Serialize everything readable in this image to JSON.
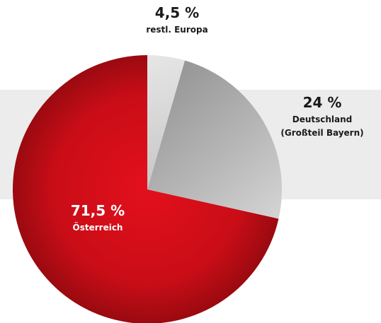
{
  "chart_data": {
    "type": "pie",
    "slices": [
      {
        "pct_label": "71,5 %",
        "label_lines": [
          "Österreich"
        ],
        "value": 71.5,
        "color": "#d40f1a",
        "text_color": "#ffffff"
      },
      {
        "pct_label": "24 %",
        "label_lines": [
          "Deutschland",
          "(Großteil Bayern)"
        ],
        "value": 24,
        "color": "#b4b4b4",
        "text_color": "#1a1a1a"
      },
      {
        "pct_label": "4,5 %",
        "label_lines": [
          "restl. Europa"
        ],
        "value": 4.5,
        "color": "#dcdcdc",
        "text_color": "#1a1a1a"
      }
    ]
  }
}
